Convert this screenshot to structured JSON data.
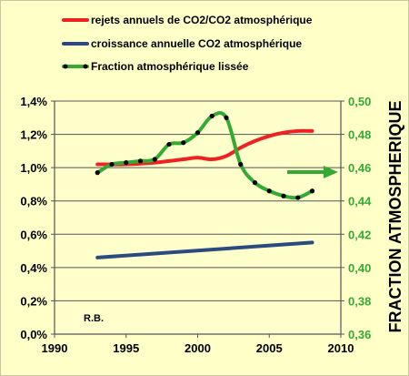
{
  "chart_data": {
    "type": "line",
    "title": "",
    "x_ticks": [
      "1990",
      "1995",
      "2000",
      "2005",
      "2010"
    ],
    "xlim": [
      1990,
      2010
    ],
    "left_axis": {
      "ticks": [
        "0,0%",
        "0,2%",
        "0,4%",
        "0,6%",
        "0,8%",
        "1,0%",
        "1,2%",
        "1,4%"
      ],
      "ylim": [
        0,
        1.4
      ],
      "unit": "%"
    },
    "right_axis": {
      "label": "FRACTION ATMOSPHERIQUE",
      "ticks": [
        "0,36",
        "0,38",
        "0,40",
        "0,42",
        "0,44",
        "0,46",
        "0,48",
        "0,50"
      ],
      "ylim": [
        0.36,
        0.5
      ],
      "color": "#33aa33"
    },
    "grid": true,
    "legend_placement": "top",
    "annotation": "R.B.",
    "series": [
      {
        "name": "rejets annuels de CO2/CO2 atmosphérique",
        "axis": "left",
        "color": "#ee2222",
        "x": [
          1993,
          1995,
          1997,
          1999,
          2000,
          2001,
          2002,
          2003,
          2004,
          2005,
          2006,
          2007,
          2008
        ],
        "values": [
          1.02,
          1.02,
          1.03,
          1.05,
          1.06,
          1.05,
          1.07,
          1.12,
          1.16,
          1.19,
          1.21,
          1.22,
          1.22
        ]
      },
      {
        "name": "croissance annuelle CO2  atmosphérique",
        "axis": "left",
        "color": "#2a4a80",
        "x": [
          1993,
          2008
        ],
        "values": [
          0.46,
          0.55
        ]
      },
      {
        "name": "Fraction atmosphérique lissée",
        "axis": "right",
        "color": "#33aa33",
        "x": [
          1993,
          1994,
          1995,
          1996,
          1997,
          1998,
          1999,
          2000,
          2001,
          2002,
          2003,
          2004,
          2005,
          2006,
          2007,
          2008
        ],
        "values": [
          0.457,
          0.462,
          0.463,
          0.464,
          0.465,
          0.474,
          0.475,
          0.481,
          0.491,
          0.49,
          0.462,
          0.451,
          0.446,
          0.443,
          0.442,
          0.446
        ]
      }
    ]
  }
}
